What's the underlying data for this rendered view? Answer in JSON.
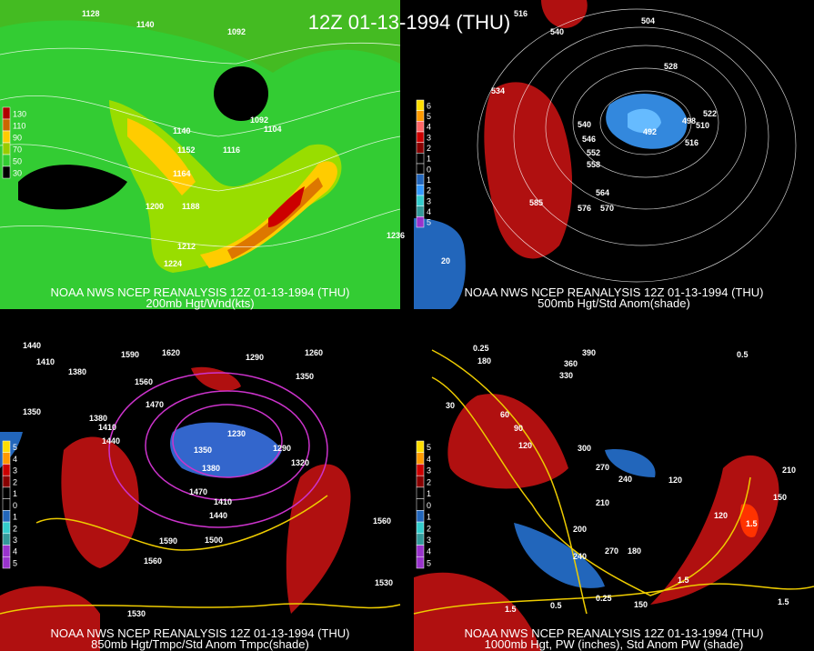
{
  "title": "12Z 01-13-1994 (THU)",
  "panels": [
    {
      "caption": "NOAA NWS NCEP REANALYSIS 12Z 01-13-1994 (THU)",
      "subtitle": "200mb Hgt/Wnd(kts)",
      "colorbar": [
        "130",
        "110",
        "90",
        "70",
        "50",
        "30"
      ],
      "labels": [
        "1128",
        "1140",
        "1092",
        "1092",
        "1104",
        "1140",
        "1152",
        "1116",
        "1164",
        "1200",
        "1188",
        "1212",
        "1224",
        "1236"
      ]
    },
    {
      "caption": "NOAA NWS NCEP REANALYSIS 12Z 01-13-1994 (THU)",
      "subtitle": "500mb Hgt/Std Anom(shade)",
      "colorbar": [
        "6",
        "5",
        "4",
        "3",
        "2",
        "1",
        "0",
        "1",
        "2",
        "3",
        "4",
        "5"
      ],
      "labels": [
        "516",
        "540",
        "504",
        "528",
        "534",
        "540",
        "546",
        "552",
        "558",
        "564",
        "570",
        "576",
        "498",
        "510",
        "522",
        "492",
        "516",
        "585",
        "20"
      ]
    },
    {
      "caption": "NOAA NWS NCEP REANALYSIS 12Z 01-13-1994 (THU)",
      "subtitle": "850mb Hgt/Tmpc/Std Anom Tmpc(shade)",
      "colorbar": [
        "5",
        "4",
        "3",
        "2",
        "1",
        "0",
        "1",
        "2",
        "3",
        "4",
        "5"
      ],
      "labels": [
        "1440",
        "1410",
        "1380",
        "1620",
        "1590",
        "1560",
        "1290",
        "1260",
        "1350",
        "1470",
        "1350",
        "1380",
        "1410",
        "1440",
        "1230",
        "1290",
        "1320",
        "1350",
        "1380",
        "1470",
        "1410",
        "1440",
        "1500",
        "1560",
        "1590",
        "1560",
        "1530",
        "1530"
      ]
    },
    {
      "caption": "NOAA NWS NCEP REANALYSIS 12Z 01-13-1994 (THU)",
      "subtitle": "1000mb Hgt, PW (inches), Std Anom PW (shade)",
      "colorbar": [
        "5",
        "4",
        "3",
        "2",
        "1",
        "0",
        "1",
        "2",
        "3",
        "4",
        "5"
      ],
      "labels": [
        "390",
        "360",
        "330",
        "180",
        "30",
        "60",
        "90",
        "120",
        "300",
        "270",
        "240",
        "210",
        "120",
        "120",
        "200",
        "240",
        "270",
        "180",
        "150",
        "0.25",
        "0.5",
        "1.5",
        "1.5",
        "1.5",
        "0.5",
        "0.25",
        "1.5",
        "210",
        "150"
      ]
    }
  ]
}
